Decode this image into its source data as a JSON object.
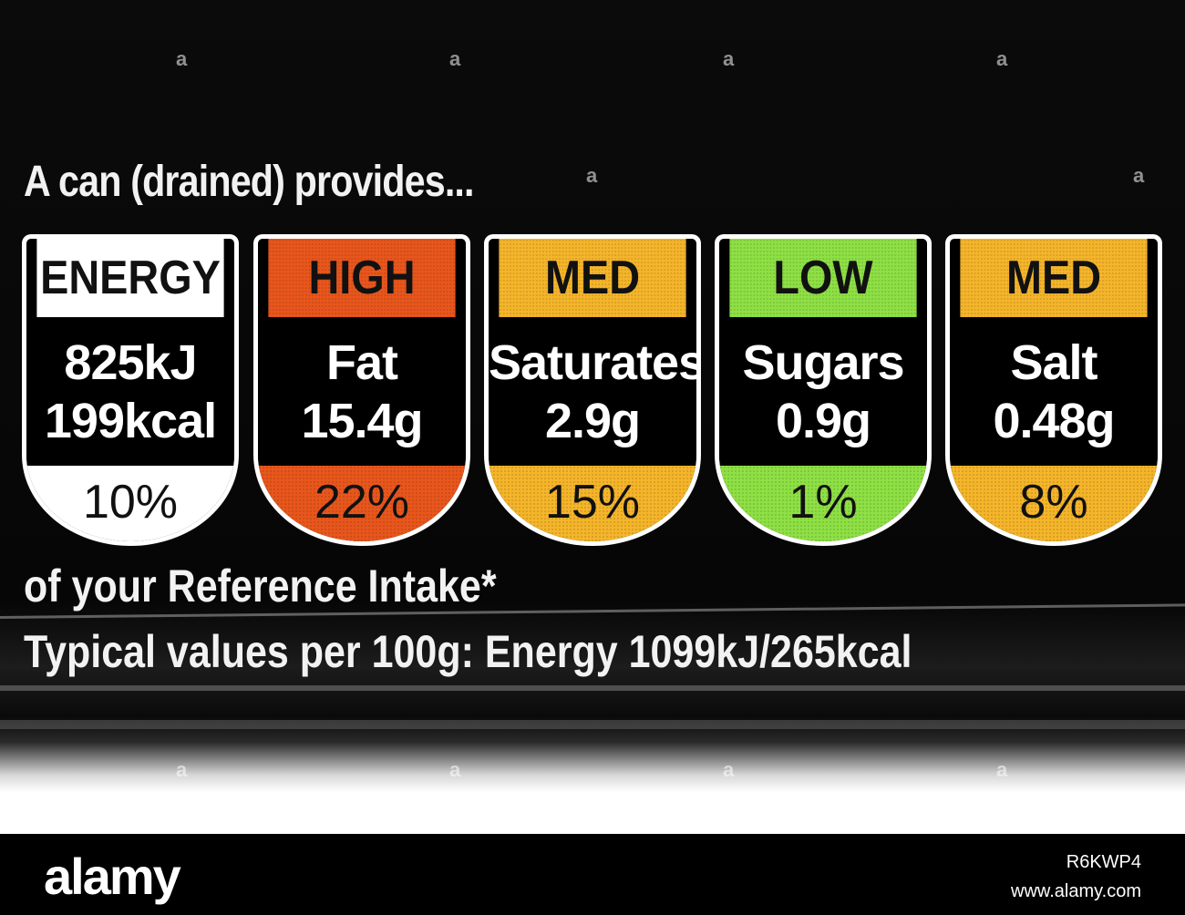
{
  "label": {
    "intro": "A can (drained) provides...",
    "reference": "of your Reference Intake*",
    "typical": "Typical values per 100g: Energy 1099kJ/265kcal"
  },
  "badges": [
    {
      "level": "ENERGY",
      "line1": "825kJ",
      "line2": "199kcal",
      "percent": "10%",
      "color": "#ffffff"
    },
    {
      "level": "HIGH",
      "line1": "Fat",
      "line2": "15.4g",
      "percent": "22%",
      "color": "#e8561c"
    },
    {
      "level": "MED",
      "line1": "Saturates",
      "line2": "2.9g",
      "percent": "15%",
      "color": "#f5b52a"
    },
    {
      "level": "LOW",
      "line1": "Sugars",
      "line2": "0.9g",
      "percent": "1%",
      "color": "#8ee044"
    },
    {
      "level": "MED",
      "line1": "Salt",
      "line2": "0.48g",
      "percent": "8%",
      "color": "#f5b52a"
    }
  ],
  "watermark": {
    "logo": "alamy",
    "image_id": "R6KWP4",
    "site": "www.alamy.com"
  }
}
